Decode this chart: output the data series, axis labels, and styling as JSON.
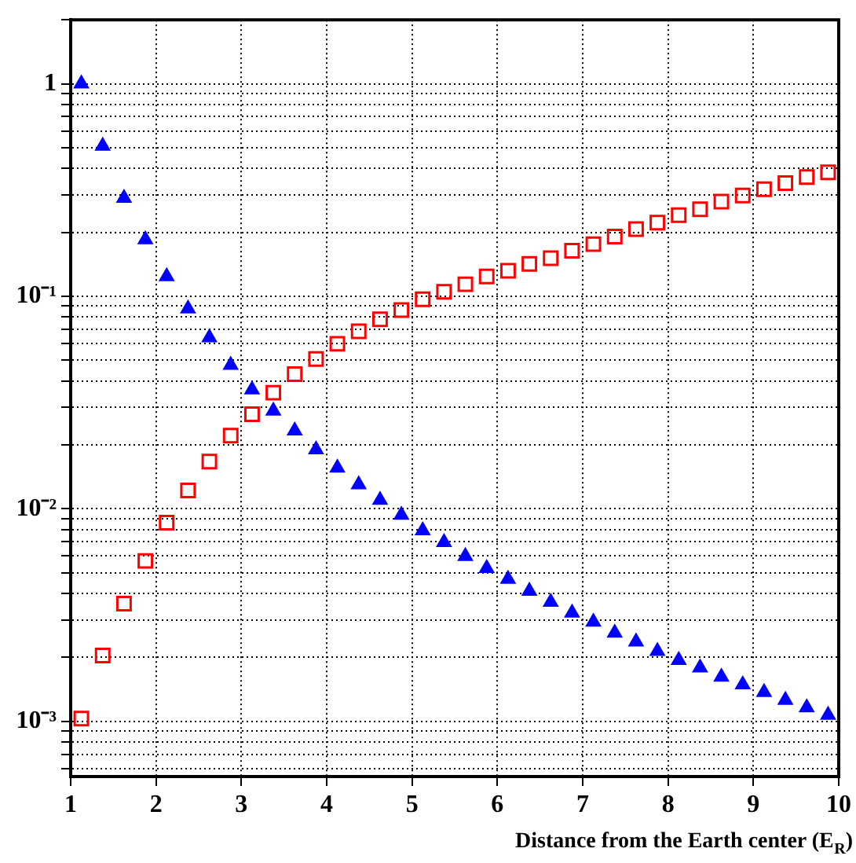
{
  "chart_data": {
    "type": "scatter",
    "xlabel": "Distance from the Earth center (E$_{R}$)",
    "log": "y",
    "grid": true,
    "legend": false,
    "x": [
      1.125,
      1.375,
      1.625,
      1.875,
      2.125,
      2.375,
      2.625,
      2.875,
      3.125,
      3.375,
      3.625,
      3.875,
      4.125,
      4.375,
      4.625,
      4.875,
      5.125,
      5.375,
      5.625,
      5.875,
      6.125,
      6.375,
      6.625,
      6.875,
      7.125,
      7.375,
      7.625,
      7.875,
      8.125,
      8.375,
      8.625,
      8.875,
      9.125,
      9.375,
      9.625,
      9.875
    ],
    "series": [
      {
        "color": "#0000ff",
        "marker": "triangle",
        "values": [
          1.0,
          0.51,
          0.29,
          0.185,
          0.124,
          0.0875,
          0.064,
          0.0475,
          0.0364,
          0.0289,
          0.0233,
          0.019,
          0.0156,
          0.013,
          0.011,
          0.00935,
          0.0079,
          0.00695,
          0.00598,
          0.00525,
          0.00467,
          0.0041,
          0.00364,
          0.00324,
          0.00294,
          0.00261,
          0.00237,
          0.00214,
          0.00194,
          0.00179,
          0.00162,
          0.00149,
          0.00137,
          0.00126,
          0.00116,
          0.00107
        ]
      },
      {
        "color": "#ff0000",
        "marker": "square",
        "values": [
          0.00103,
          0.00204,
          0.00358,
          0.00569,
          0.0086,
          0.0122,
          0.0167,
          0.0221,
          0.0279,
          0.0352,
          0.043,
          0.0507,
          0.0598,
          0.0684,
          0.078,
          0.0861,
          0.0968,
          0.105,
          0.114,
          0.124,
          0.132,
          0.142,
          0.151,
          0.164,
          0.176,
          0.191,
          0.207,
          0.222,
          0.241,
          0.257,
          0.279,
          0.298,
          0.319,
          0.341,
          0.364,
          0.383
        ]
      }
    ],
    "xlim": [
      1,
      10
    ],
    "xticks": [
      1,
      2,
      3,
      4,
      5,
      6,
      7,
      8,
      9,
      10
    ],
    "ylim": [
      0.00055,
      2
    ],
    "yticks": [
      {
        "value": 0.0006,
        "label": null
      },
      {
        "value": 0.0007,
        "label": null
      },
      {
        "value": 0.0008,
        "label": null
      },
      {
        "value": 0.0009,
        "label": null
      },
      {
        "value": 0.001,
        "label": "10⁻³"
      },
      {
        "value": 0.002,
        "label": null
      },
      {
        "value": 0.003,
        "label": null
      },
      {
        "value": 0.004,
        "label": null
      },
      {
        "value": 0.005,
        "label": null
      },
      {
        "value": 0.006,
        "label": null
      },
      {
        "value": 0.007,
        "label": null
      },
      {
        "value": 0.008,
        "label": null
      },
      {
        "value": 0.009,
        "label": null
      },
      {
        "value": 0.01,
        "label": "10⁻²"
      },
      {
        "value": 0.02,
        "label": null
      },
      {
        "value": 0.03,
        "label": null
      },
      {
        "value": 0.04,
        "label": null
      },
      {
        "value": 0.05,
        "label": null
      },
      {
        "value": 0.06,
        "label": null
      },
      {
        "value": 0.07,
        "label": null
      },
      {
        "value": 0.08,
        "label": null
      },
      {
        "value": 0.09,
        "label": null
      },
      {
        "value": 0.1,
        "label": "10⁻¹"
      },
      {
        "value": 0.2,
        "label": null
      },
      {
        "value": 0.3,
        "label": null
      },
      {
        "value": 0.4,
        "label": null
      },
      {
        "value": 0.5,
        "label": null
      },
      {
        "value": 0.6,
        "label": null
      },
      {
        "value": 0.7,
        "label": null
      },
      {
        "value": 0.8,
        "label": null
      },
      {
        "value": 0.9,
        "label": null
      },
      {
        "value": 1,
        "label": "1"
      },
      {
        "value": 2,
        "label": null
      }
    ]
  }
}
